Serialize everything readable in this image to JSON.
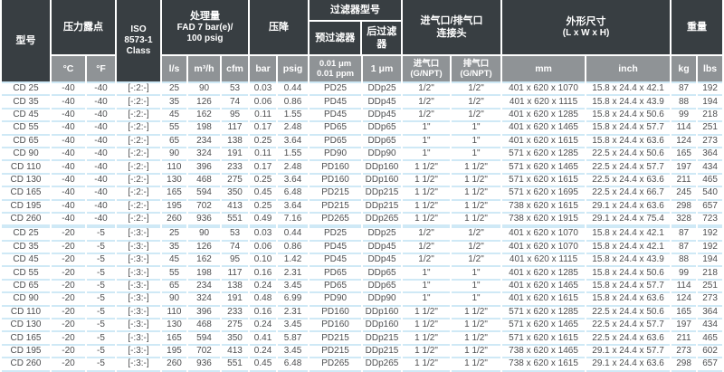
{
  "colors": {
    "header_dark": "#383e42",
    "header_gray": "#8f9396",
    "row_separator_blue": "#cfe9f6",
    "data_text": "#4d4e50",
    "header_text": "#ffffff"
  },
  "table": {
    "groups": {
      "model": "型号",
      "dew_point": "压力露点",
      "iso_lines": [
        "ISO",
        "8573-1",
        "Class"
      ],
      "capacity_lines": [
        "处理量",
        "FAD 7 bar(e)/",
        "100 psig"
      ],
      "pressure_drop": "压降",
      "filter_title": "过滤器型号",
      "filter_pre": "预过滤器",
      "filter_post": "后过滤器",
      "connections_lines": [
        "进气口/排气口",
        "连接头"
      ],
      "dimensions_lines": [
        "外形尺寸",
        "(L x W x H)"
      ],
      "weight": "重量"
    },
    "units": {
      "dew_c": "°C",
      "dew_f": "°F",
      "flow_ls": "l/s",
      "flow_m3h": "m³/h",
      "flow_cfm": "cfm",
      "dp_bar": "bar",
      "dp_psig": "psig",
      "prefilter_lines": [
        "0.01 μm",
        "0.01 ppm"
      ],
      "postfilter": "1 μm",
      "inlet_lines": [
        "进气口",
        "(G/NPT)"
      ],
      "outlet_lines": [
        "排气口",
        "(G/NPT)"
      ],
      "dim_mm": "mm",
      "dim_inch": "inch",
      "weight_kg": "kg",
      "weight_lbs": "lbs"
    },
    "rows": [
      [
        "CD 25",
        "-40",
        "-40",
        "[-:2:-]",
        "25",
        "90",
        "53",
        "0.03",
        "0.44",
        "PD25",
        "DDp25",
        "1/2\"",
        "1/2\"",
        "401 x 620 x 1070",
        "15.8 x 24.4 x 42.1",
        "87",
        "192"
      ],
      [
        "CD 35",
        "-40",
        "-40",
        "[-:2:-]",
        "35",
        "126",
        "74",
        "0.06",
        "0.86",
        "PD45",
        "DDp45",
        "1/2\"",
        "1/2\"",
        "401 x 620 x 1115",
        "15.8 x 24.4 x 43.9",
        "88",
        "194"
      ],
      [
        "CD 45",
        "-40",
        "-40",
        "[-:2:-]",
        "45",
        "162",
        "95",
        "0.11",
        "1.55",
        "PD45",
        "DDp45",
        "1/2\"",
        "1/2\"",
        "401 x 620 x 1285",
        "15.8 x 24.4 x 50.6",
        "99",
        "218"
      ],
      [
        "CD 55",
        "-40",
        "-40",
        "[-:2:-]",
        "55",
        "198",
        "117",
        "0.17",
        "2.48",
        "PD65",
        "DDp65",
        "1\"",
        "1\"",
        "401 x 620 x 1465",
        "15.8 x 24.4 x 57.7",
        "114",
        "251"
      ],
      [
        "CD 65",
        "-40",
        "-40",
        "[-:2:-]",
        "65",
        "234",
        "138",
        "0.25",
        "3.64",
        "PD65",
        "DDp65",
        "1\"",
        "1\"",
        "401 x 620 x 1615",
        "15.8 x 24.4 x 63.6",
        "124",
        "273"
      ],
      [
        "CD 90",
        "-40",
        "-40",
        "[-:2:-]",
        "90",
        "324",
        "191",
        "0.11",
        "1.55",
        "PD90",
        "DDp90",
        "1\"",
        "1\"",
        "571 x 620 x 1285",
        "22.5 x 24.4 x 50.6",
        "165",
        "364"
      ],
      [
        "CD 110",
        "-40",
        "-40",
        "[-:2:-]",
        "110",
        "396",
        "233",
        "0.17",
        "2.48",
        "PD160",
        "DDp160",
        "1 1/2\"",
        "1 1/2\"",
        "571 x 620 x 1465",
        "22.5 x 24.4 x 57.7",
        "197",
        "434"
      ],
      [
        "CD 130",
        "-40",
        "-40",
        "[-:2:-]",
        "130",
        "468",
        "275",
        "0.25",
        "3.64",
        "PD160",
        "DDp160",
        "1 1/2\"",
        "1 1/2\"",
        "571 x 620 x 1615",
        "22.5 x 24.4 x 63.6",
        "211",
        "465"
      ],
      [
        "CD 165",
        "-40",
        "-40",
        "[-:2:-]",
        "165",
        "594",
        "350",
        "0.45",
        "6.48",
        "PD215",
        "DDp215",
        "1 1/2\"",
        "1 1/2\"",
        "571 x 620 x 1695",
        "22.5 x 24.4 x 66.7",
        "245",
        "540"
      ],
      [
        "CD 195",
        "-40",
        "-40",
        "[-:2:-]",
        "195",
        "702",
        "413",
        "0.25",
        "3.64",
        "PD215",
        "DDp215",
        "1 1/2\"",
        "1 1/2\"",
        "738 x 620 x 1615",
        "29.1 x 24.4 x 63.6",
        "298",
        "657"
      ],
      [
        "CD 260",
        "-40",
        "-40",
        "[-:2:-]",
        "260",
        "936",
        "551",
        "0.49",
        "7.16",
        "PD265",
        "DDp265",
        "1 1/2\"",
        "1 1/2\"",
        "738 x 620 x 1915",
        "29.1 x 24.4 x 75.4",
        "328",
        "723"
      ],
      [
        "CD 25",
        "-20",
        "-5",
        "[-:3:-]",
        "25",
        "90",
        "53",
        "0.03",
        "0.44",
        "PD25",
        "DDp25",
        "1/2\"",
        "1/2\"",
        "401 x 620 x 1070",
        "15.8 x 24.4 x 42.1",
        "87",
        "192"
      ],
      [
        "CD 35",
        "-20",
        "-5",
        "[-:3:-]",
        "35",
        "126",
        "74",
        "0.06",
        "0.86",
        "PD45",
        "DDp45",
        "1/2\"",
        "1/2\"",
        "401 x 620 x 1070",
        "15.8 x 24.4 x 42.1",
        "87",
        "192"
      ],
      [
        "CD 45",
        "-20",
        "-5",
        "[-:3:-]",
        "45",
        "162",
        "95",
        "0.10",
        "1.42",
        "PD45",
        "DDp45",
        "1/2\"",
        "1/2\"",
        "401 x 620 x 1115",
        "15.8 x 24.4 x 43.9",
        "88",
        "194"
      ],
      [
        "CD 55",
        "-20",
        "-5",
        "[-:3:-]",
        "55",
        "198",
        "117",
        "0.16",
        "2.31",
        "PD65",
        "DDp65",
        "1\"",
        "1\"",
        "401 x 620 x 1285",
        "15.8 x 24.4 x 50.6",
        "99",
        "218"
      ],
      [
        "CD 65",
        "-20",
        "-5",
        "[-:3:-]",
        "65",
        "234",
        "138",
        "0.24",
        "3.45",
        "PD65",
        "DDp65",
        "1\"",
        "1\"",
        "401 x 620 x 1465",
        "15.8 x 24.4 x 57.7",
        "114",
        "251"
      ],
      [
        "CD 90",
        "-20",
        "-5",
        "[-:3:-]",
        "90",
        "324",
        "191",
        "0.48",
        "6.99",
        "PD90",
        "DDp90",
        "1\"",
        "1\"",
        "401 x 620 x 1615",
        "15.8 x 24.4 x 63.6",
        "124",
        "273"
      ],
      [
        "CD 110",
        "-20",
        "-5",
        "[-:3:-]",
        "110",
        "396",
        "233",
        "0.16",
        "2.31",
        "PD160",
        "DDp160",
        "1 1/2\"",
        "1 1/2\"",
        "571 x 620 x 1285",
        "22.5 x 24.4 x 50.6",
        "165",
        "364"
      ],
      [
        "CD 130",
        "-20",
        "-5",
        "[-:3:-]",
        "130",
        "468",
        "275",
        "0.24",
        "3.45",
        "PD160",
        "DDp160",
        "1 1/2\"",
        "1 1/2\"",
        "571 x 620 x 1465",
        "22.5 x 24.4 x 57.7",
        "197",
        "434"
      ],
      [
        "CD 165",
        "-20",
        "-5",
        "[-:3:-]",
        "165",
        "594",
        "350",
        "0.41",
        "5.87",
        "PD215",
        "DDp215",
        "1 1/2\"",
        "1 1/2\"",
        "571 x 620 x 1615",
        "22.5 x 24.4 x 63.6",
        "211",
        "465"
      ],
      [
        "CD 195",
        "-20",
        "-5",
        "[-:3:-]",
        "195",
        "702",
        "413",
        "0.24",
        "3.45",
        "PD215",
        "DDp215",
        "1 1/2\"",
        "1 1/2\"",
        "738 x 620 x 1465",
        "29.1 x 24.4 x 57.7",
        "273",
        "602"
      ],
      [
        "CD 260",
        "-20",
        "-5",
        "[-:3:-]",
        "260",
        "936",
        "551",
        "0.45",
        "6.48",
        "PD265",
        "DDp265",
        "1 1/2\"",
        "1 1/2\"",
        "738 x 620 x 1615",
        "29.1 x 24.4 x 63.6",
        "298",
        "657"
      ]
    ]
  }
}
